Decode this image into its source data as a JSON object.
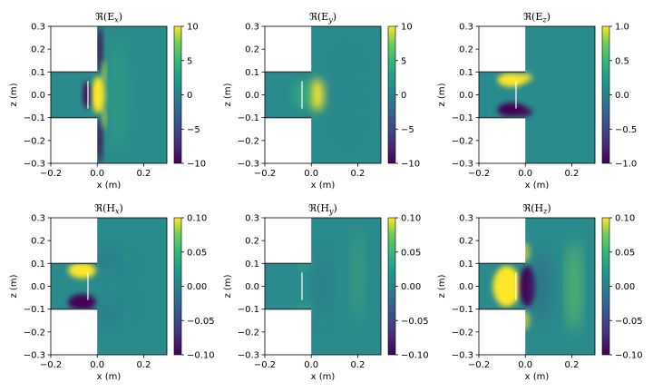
{
  "chart_data": [
    {
      "type": "heatmap",
      "title": "ℜ(Eₓ)",
      "title_main": "ℜ(E",
      "title_sub": "x",
      "title_close": ")",
      "xlabel": "x (m)",
      "ylabel": "z (m)",
      "xlim": [
        -0.2,
        0.3
      ],
      "ylim": [
        -0.3,
        0.3
      ],
      "xticks": [
        "−0.2",
        "0.0",
        "0.2"
      ],
      "yticks": [
        "0.3",
        "0.2",
        "0.1",
        "0.0",
        "−0.1",
        "−0.2",
        "−0.3"
      ],
      "colorbar": {
        "min": -10,
        "max": 10,
        "ticks": [
          "10",
          "5",
          "0",
          "−5",
          "−10"
        ]
      }
    },
    {
      "type": "heatmap",
      "title": "ℜ(Eᵧ)",
      "title_main": "ℜ(E",
      "title_sub": "y",
      "title_close": ")",
      "xlabel": "x (m)",
      "ylabel": "z (m)",
      "xlim": [
        -0.2,
        0.3
      ],
      "ylim": [
        -0.3,
        0.3
      ],
      "xticks": [
        "−0.2",
        "0.0",
        "0.2"
      ],
      "yticks": [
        "0.3",
        "0.2",
        "0.1",
        "0.0",
        "−0.1",
        "−0.2",
        "−0.3"
      ],
      "colorbar": {
        "min": -10,
        "max": 10,
        "ticks": [
          "10",
          "5",
          "0",
          "−5",
          "−10"
        ]
      }
    },
    {
      "type": "heatmap",
      "title": "ℜ(E_z)",
      "title_main": "ℜ(E",
      "title_sub": "z",
      "title_close": ")",
      "xlabel": "x (m)",
      "ylabel": "z (m)",
      "xlim": [
        -0.2,
        0.3
      ],
      "ylim": [
        -0.3,
        0.3
      ],
      "xticks": [
        "−0.2",
        "0.0",
        "0.2"
      ],
      "yticks": [
        "0.3",
        "0.2",
        "0.1",
        "0.0",
        "−0.1",
        "−0.2",
        "−0.3"
      ],
      "colorbar": {
        "min": -1,
        "max": 1,
        "ticks": [
          "1.0",
          "0.5",
          "0.0",
          "−0.5",
          "−1.0"
        ]
      }
    },
    {
      "type": "heatmap",
      "title": "ℜ(Hₓ)",
      "title_main": "ℜ(H",
      "title_sub": "x",
      "title_close": ")",
      "xlabel": "x (m)",
      "ylabel": "z (m)",
      "xlim": [
        -0.2,
        0.3
      ],
      "ylim": [
        -0.3,
        0.3
      ],
      "xticks": [
        "−0.2",
        "0.0",
        "0.2"
      ],
      "yticks": [
        "0.3",
        "0.2",
        "0.1",
        "0.0",
        "−0.1",
        "−0.2",
        "−0.3"
      ],
      "colorbar": {
        "min": -0.1,
        "max": 0.1,
        "ticks": [
          "0.10",
          "0.05",
          "0.00",
          "−0.05",
          "−0.10"
        ]
      }
    },
    {
      "type": "heatmap",
      "title": "ℜ(Hᵧ)",
      "title_main": "ℜ(H",
      "title_sub": "y",
      "title_close": ")",
      "xlabel": "x (m)",
      "ylabel": "z (m)",
      "xlim": [
        -0.2,
        0.3
      ],
      "ylim": [
        -0.3,
        0.3
      ],
      "xticks": [
        "−0.2",
        "0.0",
        "0.2"
      ],
      "yticks": [
        "0.3",
        "0.2",
        "0.1",
        "0.0",
        "−0.1",
        "−0.2",
        "−0.3"
      ],
      "colorbar": {
        "min": -0.1,
        "max": 0.1,
        "ticks": [
          "0.10",
          "0.05",
          "0.00",
          "−0.05",
          "−0.10"
        ]
      }
    },
    {
      "type": "heatmap",
      "title": "ℜ(H_z)",
      "title_main": "ℜ(H",
      "title_sub": "z",
      "title_close": ")",
      "xlabel": "x (m)",
      "ylabel": "z (m)",
      "xlim": [
        -0.2,
        0.3
      ],
      "ylim": [
        -0.3,
        0.3
      ],
      "xticks": [
        "−0.2",
        "0.0",
        "0.2"
      ],
      "yticks": [
        "0.3",
        "0.2",
        "0.1",
        "0.0",
        "−0.1",
        "−0.2",
        "−0.3"
      ],
      "colorbar": {
        "min": -0.1,
        "max": 0.1,
        "ticks": [
          "0.10",
          "0.05",
          "0.00",
          "−0.05",
          "−0.10"
        ]
      }
    }
  ],
  "colors": {
    "viridis_low": "#440154",
    "viridis_mid": "#21918c",
    "viridis_high": "#fde725",
    "field_bg": "#2a8b8c",
    "metal": "#ffffff"
  }
}
